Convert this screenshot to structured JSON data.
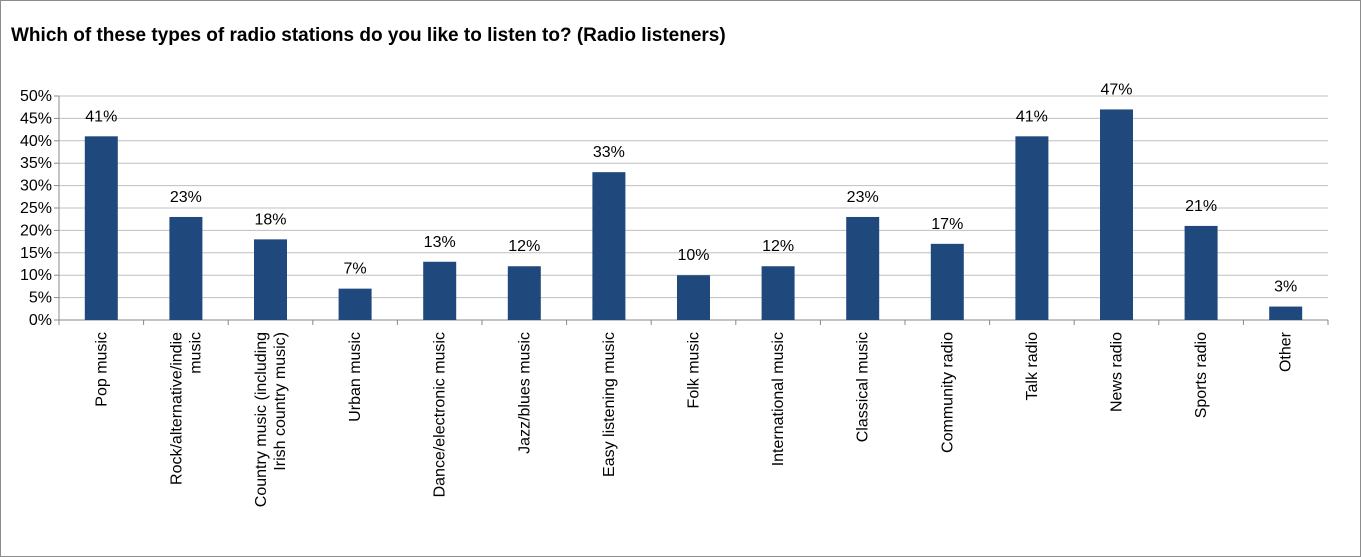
{
  "chart_data": {
    "type": "bar",
    "title": "Which of these types of radio stations do you like to listen to? (Radio listeners)",
    "xlabel": "",
    "ylabel": "",
    "ylim": [
      0,
      50
    ],
    "yticks": [
      "0%",
      "5%",
      "10%",
      "15%",
      "20%",
      "25%",
      "30%",
      "35%",
      "40%",
      "45%",
      "50%"
    ],
    "grid": true,
    "bar_color": "#1f497d",
    "gridline_color": "#bfbfbf",
    "categories": [
      [
        "Pop music"
      ],
      [
        "Rock/alternative/indie",
        "music"
      ],
      [
        "Country music (including",
        "Irish country music)"
      ],
      [
        "Urban music"
      ],
      [
        "Dance/electronic music"
      ],
      [
        "Jazz/blues music"
      ],
      [
        "Easy listening music"
      ],
      [
        "Folk music"
      ],
      [
        "International music"
      ],
      [
        "Classical music"
      ],
      [
        "Community radio"
      ],
      [
        "Talk radio"
      ],
      [
        "News radio"
      ],
      [
        "Sports radio"
      ],
      [
        "Other"
      ]
    ],
    "values": [
      41,
      23,
      18,
      7,
      13,
      12,
      33,
      10,
      12,
      23,
      17,
      41,
      47,
      21,
      3
    ],
    "value_labels": [
      "41%",
      "23%",
      "18%",
      "7%",
      "13%",
      "12%",
      "33%",
      "10%",
      "12%",
      "23%",
      "17%",
      "41%",
      "47%",
      "21%",
      "3%"
    ]
  }
}
